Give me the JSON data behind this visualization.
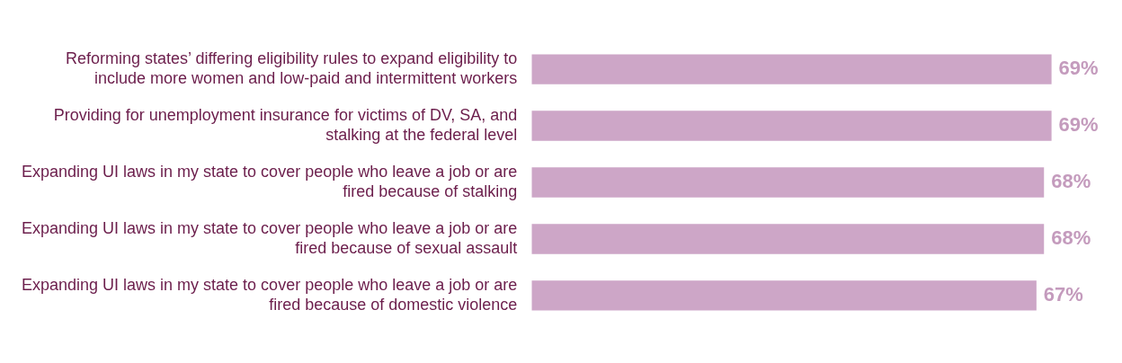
{
  "chart_data": {
    "type": "bar",
    "orientation": "horizontal",
    "categories": [
      "Reforming states’ differing eligibility rules to expand eligibility to include more women and low-paid and intermittent workers",
      "Providing for unemployment insurance for victims of DV, SA, and stalking at the federal level",
      "Expanding UI laws in my state to cover people who leave a job or are fired because of stalking",
      "Expanding UI laws in my state to cover people who leave a job or are fired because of sexual assault",
      "Expanding UI laws in my state to cover people who leave a job or are fired because of domestic violence"
    ],
    "values": [
      69,
      69,
      68,
      68,
      67
    ],
    "value_labels": [
      "69%",
      "69%",
      "68%",
      "68%",
      "67%"
    ],
    "color": "#cda6c7",
    "legend": false,
    "tick_labels": "y"
  }
}
